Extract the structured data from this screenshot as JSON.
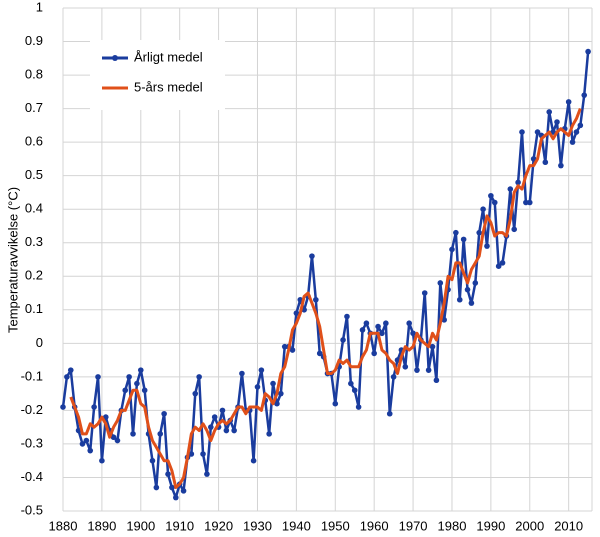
{
  "chart_data": {
    "type": "line",
    "y_label": "Temperaturavvikelse (°C)",
    "x": [
      1880,
      1881,
      1882,
      1883,
      1884,
      1885,
      1886,
      1887,
      1888,
      1889,
      1890,
      1891,
      1892,
      1893,
      1894,
      1895,
      1896,
      1897,
      1898,
      1899,
      1900,
      1901,
      1902,
      1903,
      1904,
      1905,
      1906,
      1907,
      1908,
      1909,
      1910,
      1911,
      1912,
      1913,
      1914,
      1915,
      1916,
      1917,
      1918,
      1919,
      1920,
      1921,
      1922,
      1923,
      1924,
      1925,
      1926,
      1927,
      1928,
      1929,
      1930,
      1931,
      1932,
      1933,
      1934,
      1935,
      1936,
      1937,
      1938,
      1939,
      1940,
      1941,
      1942,
      1943,
      1944,
      1945,
      1946,
      1947,
      1948,
      1949,
      1950,
      1951,
      1952,
      1953,
      1954,
      1955,
      1956,
      1957,
      1958,
      1959,
      1960,
      1961,
      1962,
      1963,
      1964,
      1965,
      1966,
      1967,
      1968,
      1969,
      1970,
      1971,
      1972,
      1973,
      1974,
      1975,
      1976,
      1977,
      1978,
      1979,
      1980,
      1981,
      1982,
      1983,
      1984,
      1985,
      1986,
      1987,
      1988,
      1989,
      1990,
      1991,
      1992,
      1993,
      1994,
      1995,
      1996,
      1997,
      1998,
      1999,
      2000,
      2001,
      2002,
      2003,
      2004,
      2005,
      2006,
      2007,
      2008,
      2009,
      2010,
      2011,
      2012,
      2013,
      2014,
      2015
    ],
    "series": [
      {
        "name": "Årligt medel",
        "color": "#1a3c9e",
        "markers": true,
        "values": [
          -0.19,
          -0.1,
          -0.08,
          -0.19,
          -0.26,
          -0.3,
          -0.29,
          -0.32,
          -0.19,
          -0.1,
          -0.35,
          -0.22,
          -0.26,
          -0.28,
          -0.29,
          -0.2,
          -0.14,
          -0.1,
          -0.27,
          -0.12,
          -0.08,
          -0.14,
          -0.27,
          -0.35,
          -0.43,
          -0.27,
          -0.21,
          -0.39,
          -0.43,
          -0.46,
          -0.42,
          -0.44,
          -0.34,
          -0.33,
          -0.15,
          -0.1,
          -0.33,
          -0.39,
          -0.25,
          -0.22,
          -0.25,
          -0.2,
          -0.26,
          -0.23,
          -0.26,
          -0.19,
          -0.09,
          -0.2,
          -0.2,
          -0.35,
          -0.13,
          -0.08,
          -0.17,
          -0.27,
          -0.12,
          -0.18,
          -0.15,
          -0.01,
          -0.01,
          -0.02,
          0.09,
          0.13,
          0.1,
          0.14,
          0.26,
          0.13,
          -0.03,
          -0.04,
          -0.09,
          -0.09,
          -0.18,
          -0.07,
          0.01,
          0.08,
          -0.12,
          -0.14,
          -0.19,
          0.04,
          0.06,
          0.03,
          -0.03,
          0.05,
          0.03,
          0.06,
          -0.21,
          -0.1,
          -0.05,
          -0.02,
          -0.07,
          0.06,
          0.03,
          -0.08,
          0.01,
          0.15,
          -0.08,
          -0.01,
          -0.11,
          0.18,
          0.07,
          0.16,
          0.28,
          0.33,
          0.13,
          0.31,
          0.16,
          0.12,
          0.18,
          0.33,
          0.4,
          0.29,
          0.44,
          0.42,
          0.23,
          0.24,
          0.32,
          0.46,
          0.34,
          0.48,
          0.63,
          0.42,
          0.42,
          0.55,
          0.63,
          0.62,
          0.54,
          0.69,
          0.63,
          0.66,
          0.53,
          0.64,
          0.72,
          0.6,
          0.63,
          0.65,
          0.74,
          0.87
        ]
      },
      {
        "name": "5-års medel",
        "color": "#e0501a",
        "markers": false,
        "values": [
          null,
          null,
          -0.16,
          -0.19,
          -0.22,
          -0.27,
          -0.27,
          -0.24,
          -0.25,
          -0.24,
          -0.22,
          -0.24,
          -0.28,
          -0.25,
          -0.23,
          -0.2,
          -0.2,
          -0.17,
          -0.14,
          -0.14,
          -0.18,
          -0.19,
          -0.25,
          -0.29,
          -0.31,
          -0.33,
          -0.35,
          -0.35,
          -0.38,
          -0.43,
          -0.42,
          -0.4,
          -0.34,
          -0.27,
          -0.25,
          -0.26,
          -0.24,
          -0.26,
          -0.29,
          -0.26,
          -0.24,
          -0.23,
          -0.24,
          -0.23,
          -0.21,
          -0.19,
          -0.19,
          -0.21,
          -0.19,
          -0.19,
          -0.19,
          -0.2,
          -0.15,
          -0.16,
          -0.18,
          -0.15,
          -0.09,
          -0.07,
          -0.02,
          0.04,
          0.06,
          0.09,
          0.14,
          0.15,
          0.12,
          0.09,
          0.05,
          -0.02,
          -0.09,
          -0.09,
          -0.08,
          -0.05,
          -0.06,
          -0.05,
          -0.07,
          -0.07,
          -0.07,
          -0.04,
          -0.02,
          0.03,
          0.03,
          0.03,
          -0.02,
          -0.03,
          -0.05,
          -0.06,
          -0.09,
          -0.04,
          -0.01,
          -0.02,
          -0.01,
          0.03,
          0.01,
          0.0,
          -0.01,
          0.03,
          0.01,
          0.06,
          0.12,
          0.2,
          0.19,
          0.24,
          0.24,
          0.21,
          0.18,
          0.22,
          0.24,
          0.26,
          0.33,
          0.38,
          0.36,
          0.32,
          0.33,
          0.33,
          0.32,
          0.37,
          0.45,
          0.47,
          0.46,
          0.5,
          0.53,
          0.53,
          0.55,
          0.61,
          0.62,
          0.63,
          0.61,
          0.63,
          0.64,
          0.63,
          0.62,
          0.65,
          0.67,
          0.7,
          null,
          null
        ]
      }
    ],
    "xlim": [
      1880,
      2016
    ],
    "xticks": [
      1880,
      1890,
      1900,
      1910,
      1920,
      1930,
      1940,
      1950,
      1960,
      1970,
      1980,
      1990,
      2000,
      2010
    ],
    "ylim": [
      -0.5,
      1
    ],
    "yticks": [
      -0.5,
      -0.4,
      -0.3,
      -0.2,
      -0.1,
      0,
      0.1,
      0.2,
      0.3,
      0.4,
      0.5,
      0.6,
      0.7,
      0.8,
      0.9,
      1
    ],
    "grid": true,
    "legend": "upper-left"
  }
}
